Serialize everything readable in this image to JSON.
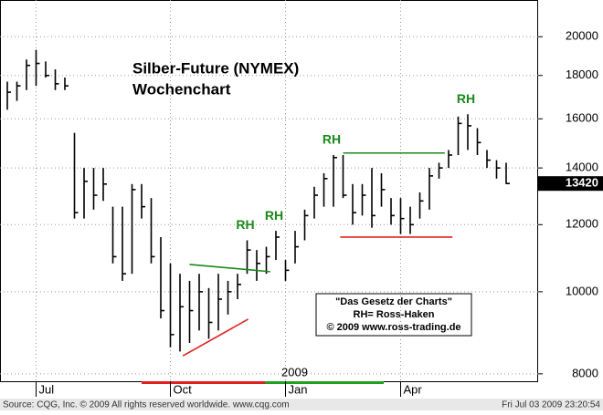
{
  "chart_data": {
    "type": "ohlc",
    "title": "Silber-Future (NYMEX)",
    "subtitle": "Wochenchart",
    "categories": [
      null,
      null,
      null,
      "Jul",
      null,
      null,
      null,
      null,
      null,
      null,
      null,
      null,
      null,
      null,
      null,
      null,
      null,
      "Oct",
      null,
      null,
      null,
      null,
      null,
      null,
      null,
      null,
      null,
      null,
      null,
      "Jan",
      null,
      null,
      null,
      null,
      null,
      null,
      null,
      null,
      null,
      null,
      null,
      "Apr",
      null,
      null,
      null,
      null,
      null,
      null,
      null,
      null,
      null,
      null,
      null
    ],
    "high": [
      17700,
      17700,
      18800,
      19300,
      18700,
      18300,
      17900,
      15400,
      14000,
      14000,
      14000,
      12600,
      12600,
      13400,
      13400,
      12900,
      11600,
      10800,
      10500,
      10300,
      10500,
      10100,
      10500,
      10300,
      10500,
      11500,
      11200,
      11300,
      11800,
      10900,
      11800,
      12500,
      13300,
      13800,
      14500,
      14500,
      13400,
      13400,
      14000,
      13800,
      12900,
      12900,
      12600,
      13100,
      14000,
      14200,
      14700,
      16100,
      16200,
      15600,
      14700,
      14300,
      14200
    ],
    "low": [
      16400,
      16800,
      17300,
      17500,
      17900,
      17300,
      17300,
      12200,
      12200,
      12500,
      12800,
      10800,
      10300,
      10500,
      12200,
      10800,
      9300,
      8600,
      8500,
      8700,
      9000,
      8800,
      9000,
      9400,
      9800,
      10500,
      10300,
      10500,
      10900,
      10300,
      10800,
      11500,
      12200,
      12600,
      12600,
      12900,
      12000,
      12300,
      11900,
      12600,
      12000,
      11700,
      11700,
      12200,
      12500,
      13600,
      14000,
      14500,
      14700,
      14500,
      14000,
      13600,
      13400
    ],
    "close": [
      17200,
      17500,
      18500,
      18600,
      18000,
      17600,
      17500,
      12400,
      13500,
      13000,
      13400,
      11000,
      10500,
      13200,
      12600,
      11000,
      9500,
      8900,
      9600,
      9500,
      10000,
      9200,
      9800,
      10000,
      10200,
      11200,
      10800,
      11000,
      11600,
      10600,
      11300,
      12300,
      13000,
      13600,
      14400,
      13000,
      12400,
      13000,
      12300,
      13200,
      12300,
      12200,
      12000,
      12800,
      13700,
      14000,
      14500,
      15800,
      15700,
      15000,
      14300,
      14000,
      13420
    ],
    "color": "#000000",
    "ylim": [
      7840,
      22100
    ],
    "yticks": [
      8000,
      10000,
      12000,
      14000,
      16000,
      18000,
      20000
    ],
    "log_scale": true,
    "grid": true,
    "year_label": "2009",
    "annotations": [
      {
        "text": "RH",
        "index": 25,
        "color": "#1a8a1a"
      },
      {
        "text": "RH",
        "index": 28,
        "color": "#1a8a1a"
      },
      {
        "text": "RH",
        "index": 34,
        "color": "#1a8a1a"
      },
      {
        "text": "RH",
        "index": 48,
        "color": "#1a8a1a"
      }
    ],
    "trendlines": [
      {
        "x": [
          19,
          27.4
        ],
        "y": [
          10770,
          10560
        ],
        "color": "#1a8a1a"
      },
      {
        "x": [
          18.3,
          25.1
        ],
        "y": [
          8400,
          9280
        ],
        "color": "#e02020"
      },
      {
        "x": [
          35,
          45.6
        ],
        "y": [
          14580,
          14580
        ],
        "color": "#1a8a1a"
      },
      {
        "x": [
          34.7,
          46.4
        ],
        "y": [
          11600,
          11600
        ],
        "color": "#e02020"
      }
    ],
    "note_box": [
      "\"Das Gesetz der Charts\"",
      "RH= Ross-Haken",
      "© 2009  www.ross-trading.de"
    ],
    "source": "Source: CQG, Inc. © 2009 All rights reserved worldwide. www.cqg.com",
    "timestamp": "Fri Jul 03 2009 23:20:54"
  }
}
